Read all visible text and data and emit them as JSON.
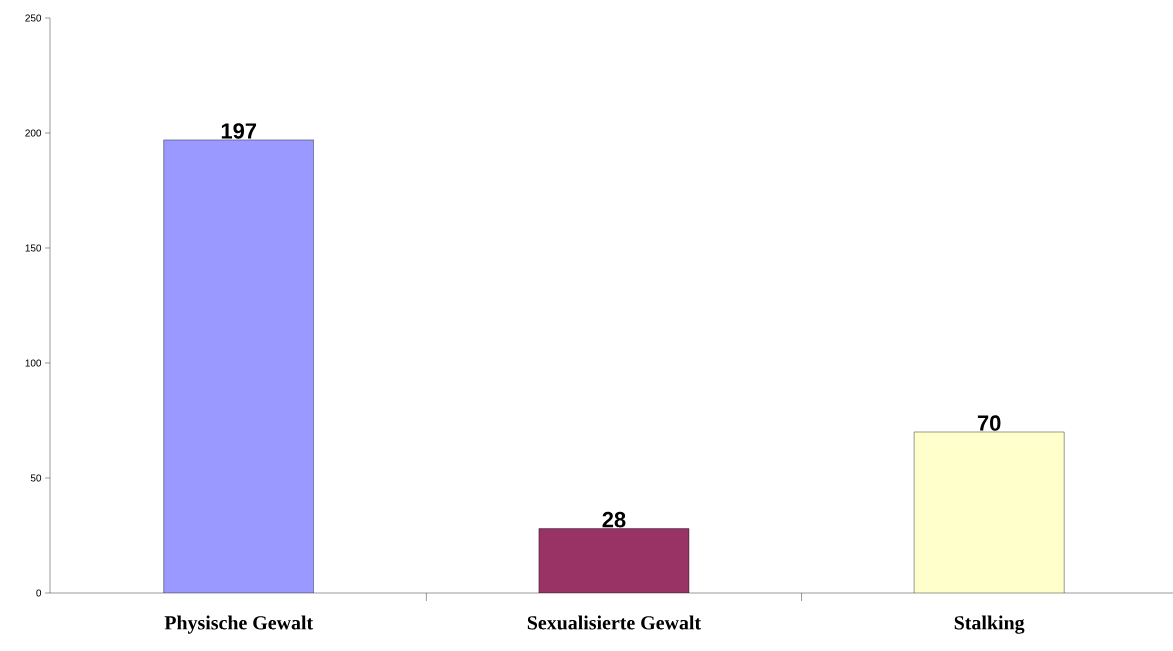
{
  "chart_data": {
    "type": "bar",
    "categories": [
      "Physische Gewalt",
      "Sexualisierte Gewalt",
      "Stalking"
    ],
    "values": [
      197,
      28,
      70
    ],
    "colors": [
      "#9999ff",
      "#993366",
      "#ffffcc"
    ],
    "ylim": [
      0,
      250
    ],
    "yticks": [
      0,
      50,
      100,
      150,
      200,
      250
    ],
    "data_labels": true
  }
}
